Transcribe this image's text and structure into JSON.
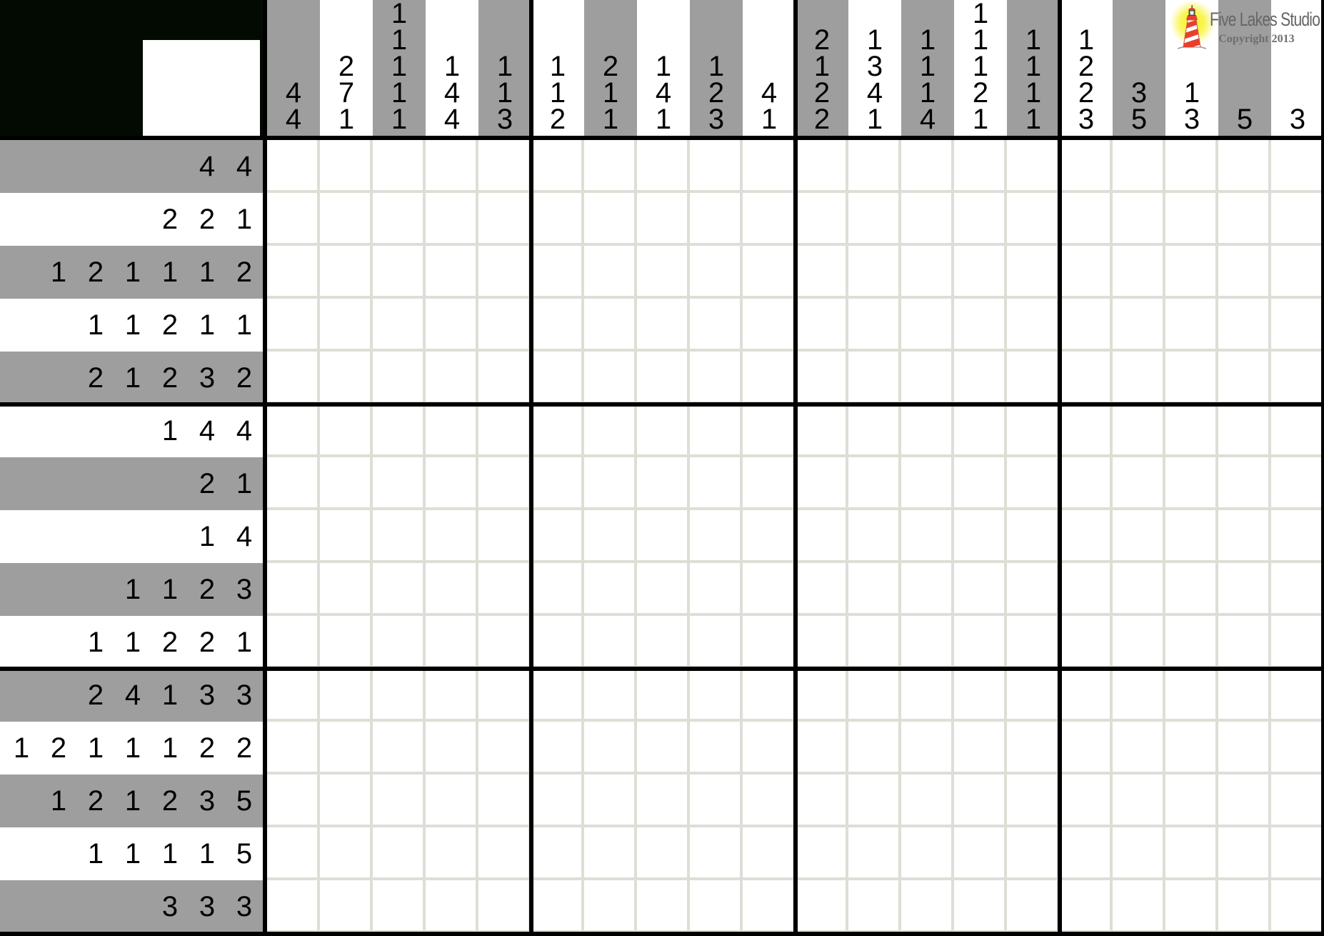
{
  "logo": {
    "studio": "Five Lakes Studio",
    "copyright": "Copyright 2013",
    "icon": "lighthouse-icon",
    "glow_color": "#f7f431",
    "text_color": "#666666"
  },
  "colors": {
    "stripe_gray": "#9e9e9e",
    "grid_line": "#deded6",
    "corner_bg": "#020a02",
    "separator_black": "#000000",
    "cell_white": "#ffffff",
    "lighthouse_red": "#e8402f"
  },
  "puzzle": {
    "cols": 20,
    "rows": 15,
    "col_clues": [
      [
        4,
        4
      ],
      [
        2,
        7,
        1
      ],
      [
        1,
        1,
        1,
        1,
        1
      ],
      [
        1,
        4,
        4
      ],
      [
        1,
        1,
        3
      ],
      [
        1,
        1,
        2
      ],
      [
        2,
        1,
        1
      ],
      [
        1,
        4,
        1
      ],
      [
        1,
        2,
        3
      ],
      [
        4,
        1
      ],
      [
        2,
        1,
        2,
        2
      ],
      [
        1,
        3,
        4,
        1
      ],
      [
        1,
        1,
        1,
        4
      ],
      [
        1,
        1,
        1,
        2,
        1
      ],
      [
        1,
        1,
        1,
        1
      ],
      [
        1,
        2,
        2,
        3
      ],
      [
        3,
        5
      ],
      [
        1,
        3
      ],
      [
        5
      ],
      [
        3
      ]
    ],
    "row_clues": [
      [
        4,
        4
      ],
      [
        2,
        2,
        1
      ],
      [
        1,
        2,
        1,
        1,
        1,
        2
      ],
      [
        1,
        1,
        2,
        1,
        1
      ],
      [
        2,
        1,
        2,
        3,
        2
      ],
      [
        1,
        4,
        4
      ],
      [
        2,
        1
      ],
      [
        1,
        4
      ],
      [
        1,
        1,
        2,
        3
      ],
      [
        1,
        1,
        2,
        2,
        1
      ],
      [
        2,
        4,
        1,
        3,
        3
      ],
      [
        1,
        2,
        1,
        1,
        1,
        2,
        2
      ],
      [
        1,
        2,
        1,
        2,
        3,
        5
      ],
      [
        1,
        1,
        1,
        1,
        5
      ],
      [
        3,
        3,
        3
      ]
    ]
  }
}
